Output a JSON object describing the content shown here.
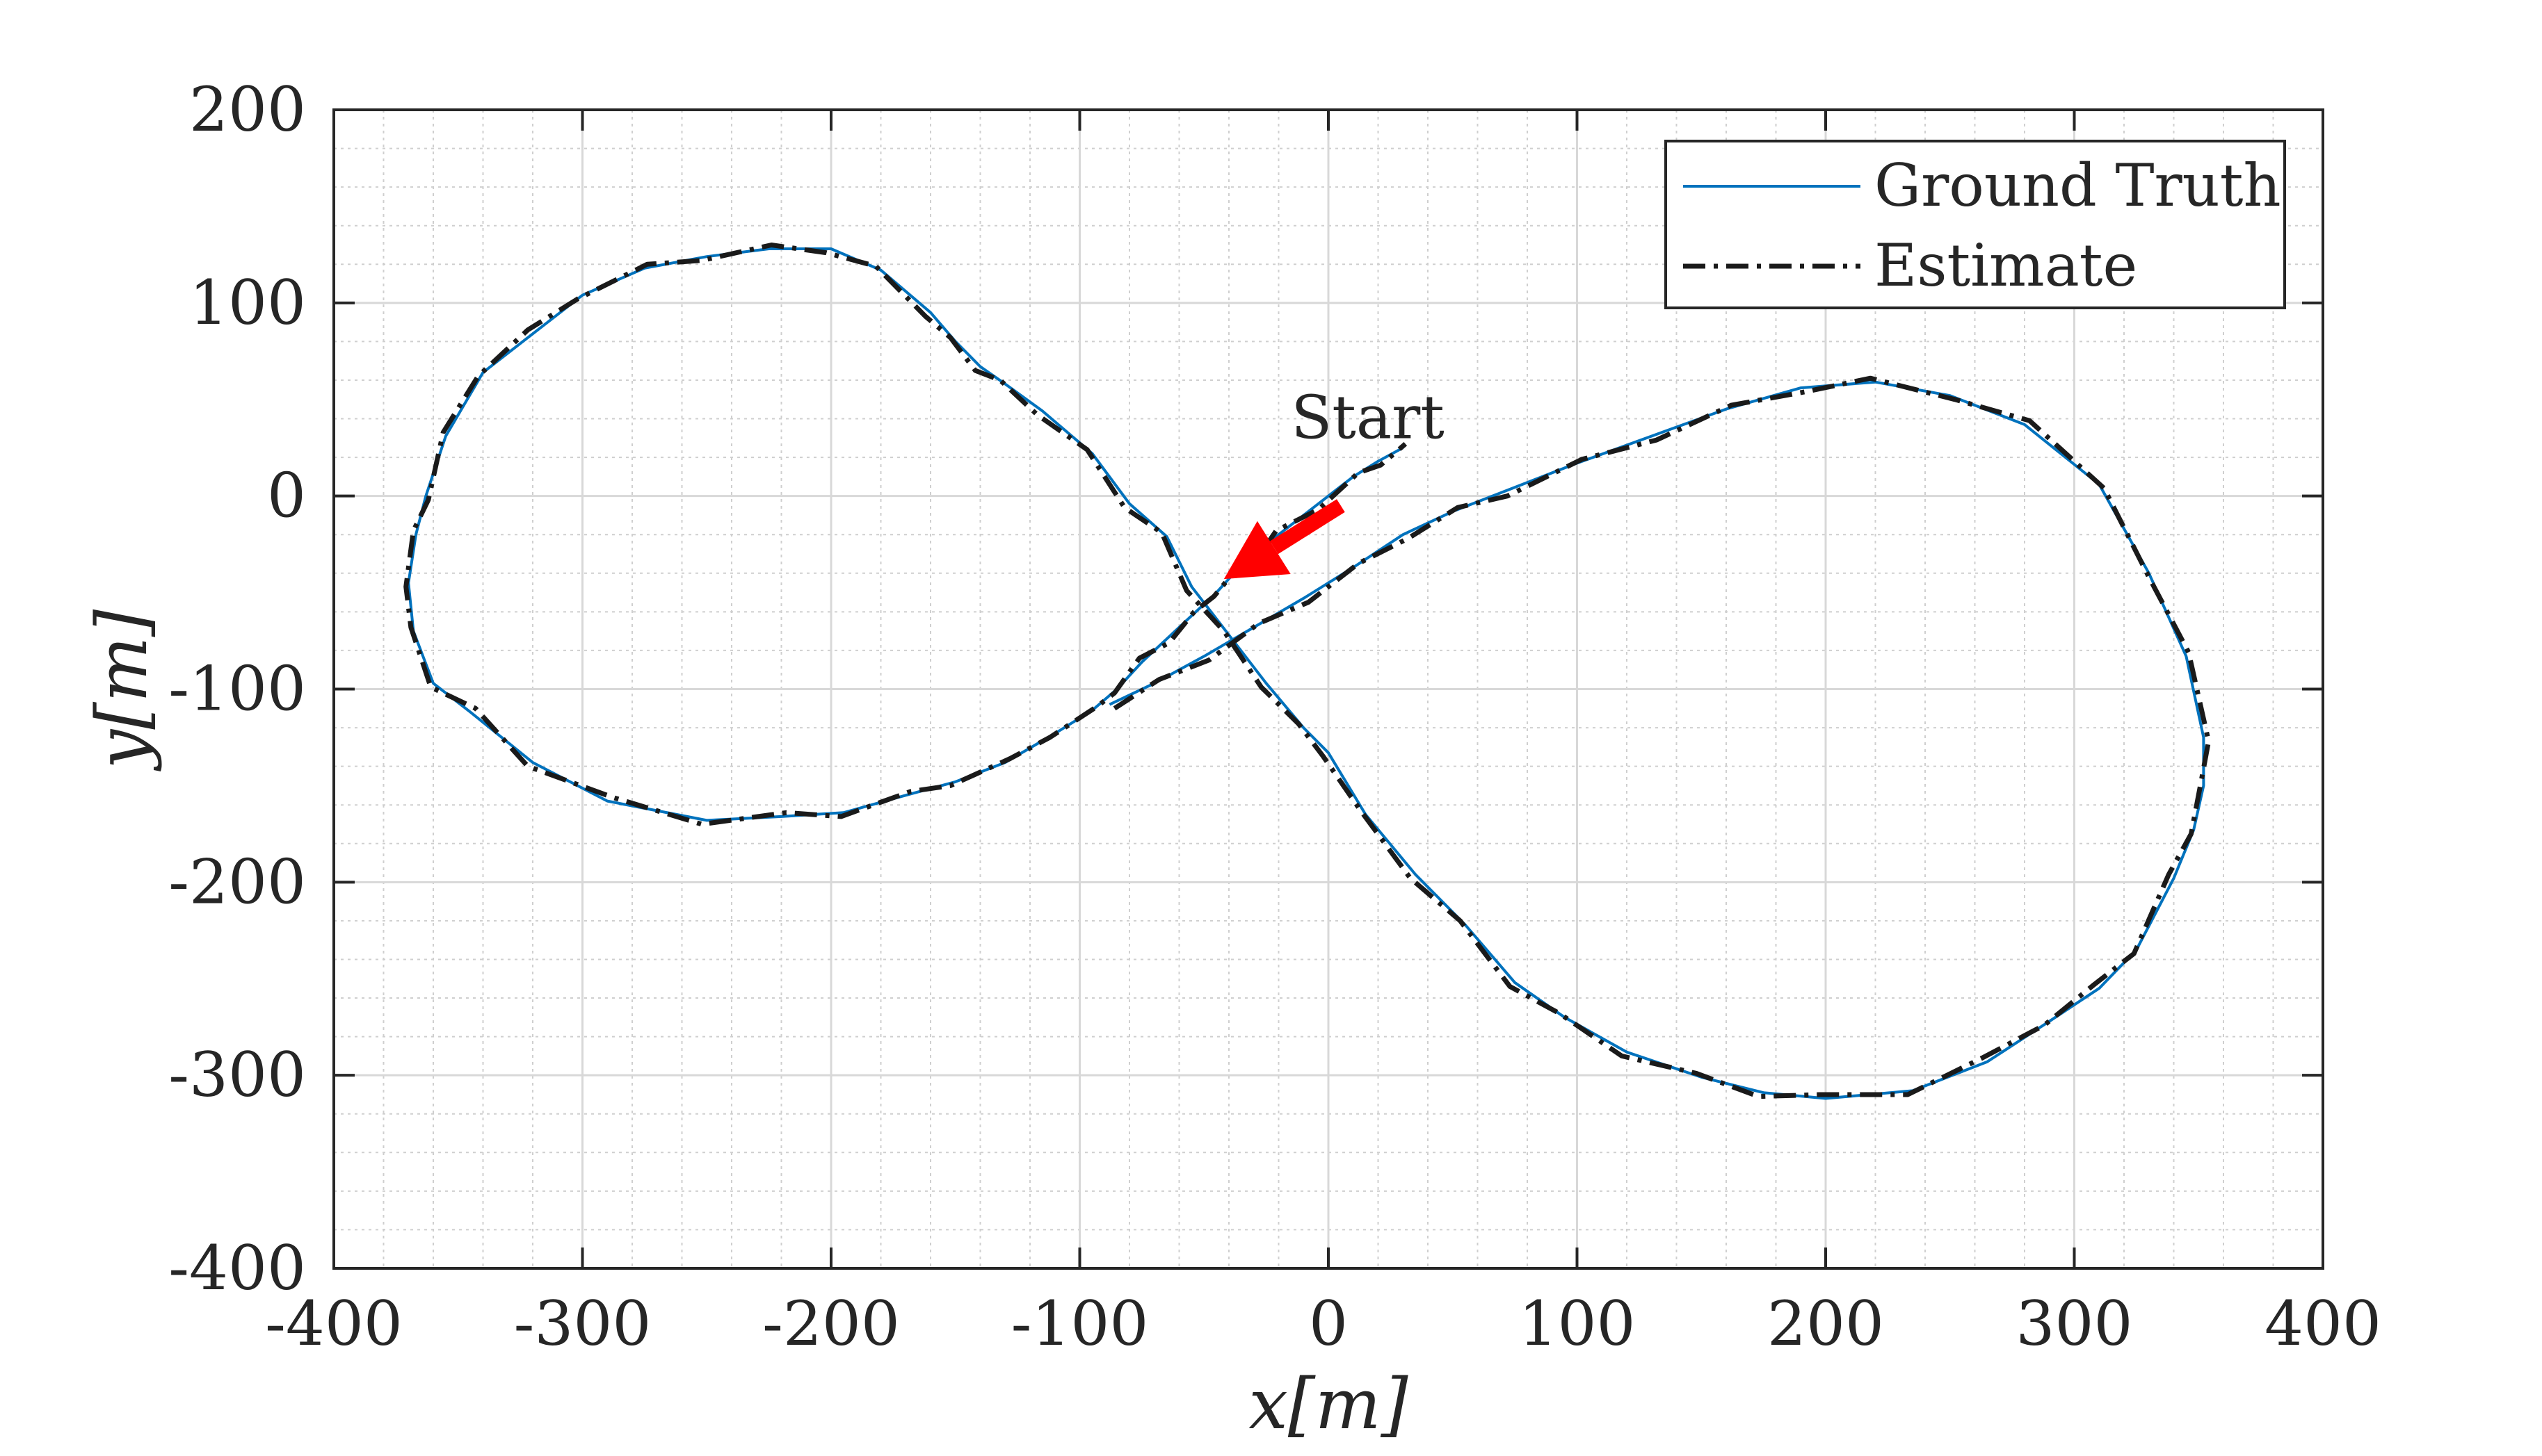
{
  "chart_data": {
    "type": "line",
    "title": "",
    "xlabel": "x[m]",
    "ylabel": "y[m]",
    "xlim": [
      -400,
      400
    ],
    "ylim": [
      -400,
      200
    ],
    "xticks": [
      -400,
      -300,
      -200,
      -100,
      0,
      100,
      200,
      300,
      400
    ],
    "yticks": [
      -400,
      -300,
      -200,
      -100,
      0,
      100,
      200
    ],
    "xtick_labels": [
      "-400",
      "-300",
      "-200",
      "-100",
      "0",
      "100",
      "200",
      "300",
      "400"
    ],
    "ytick_labels": [
      "-400",
      "-300",
      "-200",
      "-100",
      "0",
      "100",
      "200"
    ],
    "grid": true,
    "minor_grid": true,
    "legend_placement": "top-right",
    "annotation": {
      "text": "Start",
      "arrow_color": "#ff0000",
      "point": [
        -42,
        -43
      ],
      "text_pos": [
        -15,
        30
      ]
    },
    "series": [
      {
        "name": "Ground Truth",
        "color": "#0072bd",
        "style": "solid",
        "x": [
          -88,
          -70,
          -50,
          -30,
          -10,
          10,
          30,
          50,
          70,
          100,
          130,
          160,
          190,
          220,
          250,
          280,
          310,
          330,
          345,
          352,
          352,
          348,
          340,
          325,
          310,
          290,
          265,
          235,
          200,
          175,
          150,
          120,
          95,
          75,
          55,
          35,
          15,
          0,
          -10,
          -25,
          -40,
          -55,
          -65,
          -80,
          -95,
          -115,
          -130,
          -140,
          -150,
          -160,
          -180,
          -200,
          -225,
          -250,
          -275,
          -300,
          -320,
          -340,
          -355,
          -363,
          -367,
          -370,
          -368,
          -360,
          -345,
          -320,
          -290,
          -250,
          -220,
          -195,
          -170,
          -150,
          -130,
          -110,
          -95,
          -85,
          -75,
          -65,
          -55,
          -45,
          -38,
          -30,
          -20,
          -5,
          10,
          20,
          30
        ],
        "y": [
          -108,
          -97,
          -83,
          -68,
          -53,
          -37,
          -20,
          -8,
          2,
          17,
          31,
          45,
          56,
          59,
          52,
          37,
          6,
          -40,
          -83,
          -125,
          -150,
          -173,
          -198,
          -235,
          -255,
          -272,
          -293,
          -308,
          -312,
          -309,
          -301,
          -288,
          -270,
          -252,
          -222,
          -196,
          -165,
          -133,
          -120,
          -97,
          -72,
          -47,
          -21,
          -4,
          22,
          44,
          58,
          67,
          80,
          95,
          117,
          128,
          128,
          124,
          118,
          104,
          84,
          64,
          31,
          0,
          -20,
          -45,
          -70,
          -97,
          -112,
          -138,
          -158,
          -168,
          -166,
          -164,
          -155,
          -148,
          -138,
          -123,
          -111,
          -100,
          -86,
          -74,
          -62,
          -50,
          -40,
          -31,
          -20,
          -5,
          10,
          18,
          25
        ]
      },
      {
        "name": "Estimate",
        "color": "#1a1a1a",
        "style": "dashdot",
        "x": [
          -86,
          -68,
          -48,
          -28,
          -8,
          12,
          32,
          52,
          72,
          102,
          132,
          162,
          192,
          218,
          252,
          282,
          312,
          330,
          346,
          354,
          351,
          347,
          338,
          324,
          308,
          288,
          263,
          233,
          198,
          173,
          148,
          118,
          93,
          73,
          53,
          33,
          13,
          -2,
          -12,
          -27,
          -42,
          -57,
          -67,
          -82,
          -97,
          -117,
          -132,
          -142,
          -152,
          -162,
          -182,
          -202,
          -224,
          -252,
          -274,
          -302,
          -322,
          -342,
          -356,
          -362,
          -368,
          -371,
          -369,
          -361,
          -343,
          -322,
          -288,
          -252,
          -218,
          -196,
          -168,
          -152,
          -128,
          -112,
          -93,
          -86,
          -76,
          -64,
          -54,
          -46,
          -37,
          -29,
          -21,
          -4,
          12,
          21,
          31
        ],
        "y": [
          -110,
          -95,
          -85,
          -66,
          -55,
          -35,
          -22,
          -6,
          0,
          19,
          29,
          47,
          54,
          61,
          50,
          39,
          4,
          -42,
          -81,
          -127,
          -148,
          -175,
          -196,
          -237,
          -253,
          -274,
          -291,
          -310,
          -310,
          -311,
          -299,
          -290,
          -268,
          -254,
          -220,
          -198,
          -163,
          -135,
          -118,
          -99,
          -70,
          -49,
          -19,
          -6,
          24,
          42,
          60,
          65,
          82,
          93,
          119,
          126,
          130,
          122,
          120,
          102,
          86,
          62,
          33,
          -2,
          -18,
          -47,
          -68,
          -99,
          -110,
          -140,
          -156,
          -170,
          -164,
          -166,
          -153,
          -150,
          -136,
          -125,
          -109,
          -102,
          -84,
          -76,
          -60,
          -52,
          -38,
          -33,
          -18,
          -7,
          12,
          16,
          27
        ]
      }
    ]
  }
}
